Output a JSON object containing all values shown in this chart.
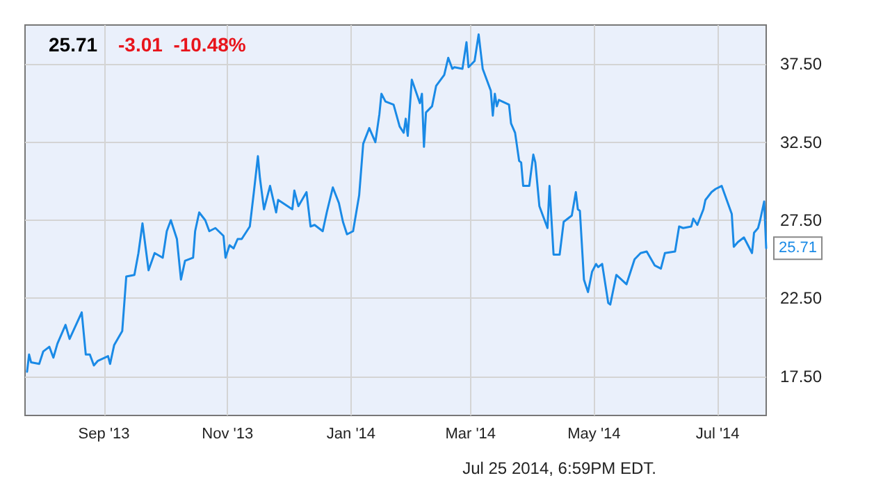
{
  "chart_data": {
    "type": "line",
    "title": "25.71",
    "subtitle": "-3.01  -10.48%",
    "annotations": [
      "Jul 25 2014, 6:59PM EDT."
    ],
    "x": [
      "2013-07-25",
      "2013-07-26",
      "2013-07-27",
      "2013-07-31",
      "2013-08-02",
      "2013-08-05",
      "2013-08-07",
      "2013-08-09",
      "2013-08-13",
      "2013-08-15",
      "2013-08-21",
      "2013-08-23",
      "2013-08-25",
      "2013-08-27",
      "2013-08-29",
      "2013-09-03",
      "2013-09-04",
      "2013-09-06",
      "2013-09-10",
      "2013-09-12",
      "2013-09-16",
      "2013-09-18",
      "2013-09-20",
      "2013-09-23",
      "2013-09-26",
      "2013-09-30",
      "2013-10-02",
      "2013-10-04",
      "2013-10-07",
      "2013-10-09",
      "2013-10-11",
      "2013-10-15",
      "2013-10-16",
      "2013-10-18",
      "2013-10-21",
      "2013-10-23",
      "2013-10-26",
      "2013-10-30",
      "2013-10-31",
      "2013-11-02",
      "2013-11-04",
      "2013-11-06",
      "2013-11-08",
      "2013-11-12",
      "2013-11-14",
      "2013-11-16",
      "2013-11-17",
      "2013-11-19",
      "2013-11-22",
      "2013-11-25",
      "2013-11-26",
      "2013-12-03",
      "2013-12-04",
      "2013-12-06",
      "2013-12-10",
      "2013-12-12",
      "2013-12-14",
      "2013-12-18",
      "2013-12-20",
      "2013-12-23",
      "2013-12-26",
      "2013-12-28",
      "2013-12-30",
      "2014-01-02",
      "2014-01-05",
      "2014-01-07",
      "2014-01-10",
      "2014-01-13",
      "2014-01-15",
      "2014-01-16",
      "2014-01-18",
      "2014-01-22",
      "2014-01-25",
      "2014-01-27",
      "2014-01-28",
      "2014-01-29",
      "2014-01-31",
      "2014-02-04",
      "2014-02-05",
      "2014-02-06",
      "2014-02-07",
      "2014-02-10",
      "2014-02-12",
      "2014-02-16",
      "2014-02-18",
      "2014-02-20",
      "2014-02-21",
      "2014-02-25",
      "2014-02-27",
      "2014-02-28",
      "2014-03-03",
      "2014-03-05",
      "2014-03-07",
      "2014-03-09",
      "2014-03-11",
      "2014-03-12",
      "2014-03-13",
      "2014-03-14",
      "2014-03-15",
      "2014-03-20",
      "2014-03-21",
      "2014-03-23",
      "2014-03-25",
      "2014-03-26",
      "2014-03-27",
      "2014-03-30",
      "2014-04-01",
      "2014-04-02",
      "2014-04-04",
      "2014-04-08",
      "2014-04-09",
      "2014-04-11",
      "2014-04-14",
      "2014-04-16",
      "2014-04-20",
      "2014-04-22",
      "2014-04-23",
      "2014-04-24",
      "2014-04-26",
      "2014-04-28",
      "2014-04-30",
      "2014-05-02",
      "2014-05-03",
      "2014-05-05",
      "2014-05-08",
      "2014-05-09",
      "2014-05-12",
      "2014-05-17",
      "2014-05-21",
      "2014-05-24",
      "2014-05-27",
      "2014-05-31",
      "2014-06-03",
      "2014-06-05",
      "2014-06-10",
      "2014-06-12",
      "2014-06-14",
      "2014-06-18",
      "2014-06-19",
      "2014-06-21",
      "2014-06-24",
      "2014-06-25",
      "2014-06-28",
      "2014-06-30",
      "2014-07-03",
      "2014-07-08",
      "2014-07-09",
      "2014-07-11",
      "2014-07-14",
      "2014-07-18",
      "2014-07-19",
      "2014-07-21",
      "2014-07-22",
      "2014-07-24",
      "2014-07-25"
    ],
    "series": [
      {
        "color": "#1a8ae6",
        "values": [
          17.8,
          18.9,
          18.4,
          18.3,
          19.1,
          19.4,
          18.7,
          19.6,
          20.8,
          19.9,
          21.6,
          18.9,
          18.9,
          18.2,
          18.5,
          18.8,
          18.3,
          19.5,
          20.4,
          23.9,
          24.0,
          25.4,
          27.3,
          24.3,
          25.4,
          25.1,
          26.8,
          27.5,
          26.3,
          23.7,
          24.9,
          25.1,
          26.8,
          28.0,
          27.5,
          26.8,
          27.0,
          26.5,
          25.1,
          25.9,
          25.7,
          26.3,
          26.3,
          27.1,
          29.3,
          31.6,
          30.2,
          28.2,
          29.7,
          28.0,
          28.8,
          28.2,
          29.4,
          28.4,
          29.3,
          27.1,
          27.2,
          26.8,
          28.0,
          29.6,
          28.6,
          27.4,
          26.6,
          26.8,
          29.1,
          32.4,
          33.4,
          32.5,
          34.3,
          35.6,
          35.1,
          34.9,
          33.5,
          33.1,
          34.0,
          32.9,
          36.5,
          35.0,
          35.6,
          32.2,
          34.4,
          34.8,
          36.1,
          36.8,
          37.9,
          37.2,
          37.3,
          37.2,
          38.9,
          37.3,
          37.7,
          39.4,
          37.2,
          36.5,
          35.8,
          34.2,
          35.6,
          34.8,
          35.2,
          34.9,
          33.7,
          33.1,
          31.3,
          31.2,
          29.7,
          29.7,
          31.7,
          31.2,
          28.4,
          27.0,
          29.7,
          25.3,
          25.3,
          27.4,
          27.8,
          29.3,
          28.2,
          28.1,
          23.7,
          22.9,
          24.2,
          24.7,
          24.5,
          24.7,
          22.2,
          22.1,
          24.0,
          23.4,
          25.0,
          25.4,
          25.5,
          24.6,
          24.4,
          25.4,
          25.5,
          27.1,
          27.0,
          27.1,
          27.6,
          27.2,
          28.2,
          28.8,
          29.3,
          29.5,
          29.7,
          27.9,
          25.8,
          26.1,
          26.4,
          25.4,
          26.7,
          27.0,
          27.5,
          28.7,
          25.71
        ],
        "value_labels": [
          null,
          null,
          null,
          null,
          null,
          null,
          null,
          null,
          null,
          null,
          null,
          null,
          null,
          null,
          null,
          null,
          null,
          null,
          null,
          null,
          null,
          null,
          null,
          null,
          null,
          null,
          null,
          null,
          null,
          null,
          null,
          null,
          null,
          null,
          null,
          null,
          null,
          null,
          null,
          null,
          null,
          null,
          null,
          null,
          null,
          null,
          null,
          null,
          null,
          null,
          null,
          null,
          null,
          null,
          null,
          null,
          null,
          null,
          null,
          null,
          null,
          null,
          null,
          null,
          null,
          null,
          null,
          null,
          null,
          null,
          null,
          null,
          null,
          null,
          null,
          null,
          null,
          null,
          null,
          null,
          null,
          null,
          null,
          null,
          null,
          null,
          null,
          null,
          null,
          null,
          null,
          null,
          null,
          null,
          null,
          null,
          null,
          null,
          null,
          null,
          null,
          null,
          null,
          null,
          null,
          null,
          null,
          null,
          null,
          null,
          null,
          null,
          null,
          null,
          null,
          null,
          null,
          null,
          null,
          null,
          null,
          null,
          null,
          null,
          null,
          null,
          null,
          null,
          null,
          null,
          null,
          null,
          null,
          null,
          null,
          null,
          null,
          null,
          null,
          null,
          null,
          null,
          null,
          null,
          null,
          null,
          null,
          null,
          null,
          null,
          null,
          null,
          null,
          null,
          "25.71"
        ]
      }
    ],
    "xlim": [
      "2013-07-24",
      "2014-07-25"
    ],
    "xticks": [
      {
        "value": "2013-09-01",
        "label": "Sep '13"
      },
      {
        "value": "2013-11-01",
        "label": "Nov '13"
      },
      {
        "value": "2014-01-01",
        "label": "Jan '14"
      },
      {
        "value": "2014-03-01",
        "label": "Mar '14"
      },
      {
        "value": "2014-05-01",
        "label": "May '14"
      },
      {
        "value": "2014-07-01",
        "label": "Jul '14"
      }
    ],
    "ylim": [
      15,
      40
    ],
    "yticks": [
      {
        "value": 17.5,
        "label": "17.50"
      },
      {
        "value": 22.5,
        "label": "22.50"
      },
      {
        "value": 27.5,
        "label": "27.50"
      },
      {
        "value": 32.5,
        "label": "32.50"
      },
      {
        "value": 37.5,
        "label": "37.50"
      }
    ],
    "grid": true,
    "marker": "none",
    "line_style": "solid"
  }
}
